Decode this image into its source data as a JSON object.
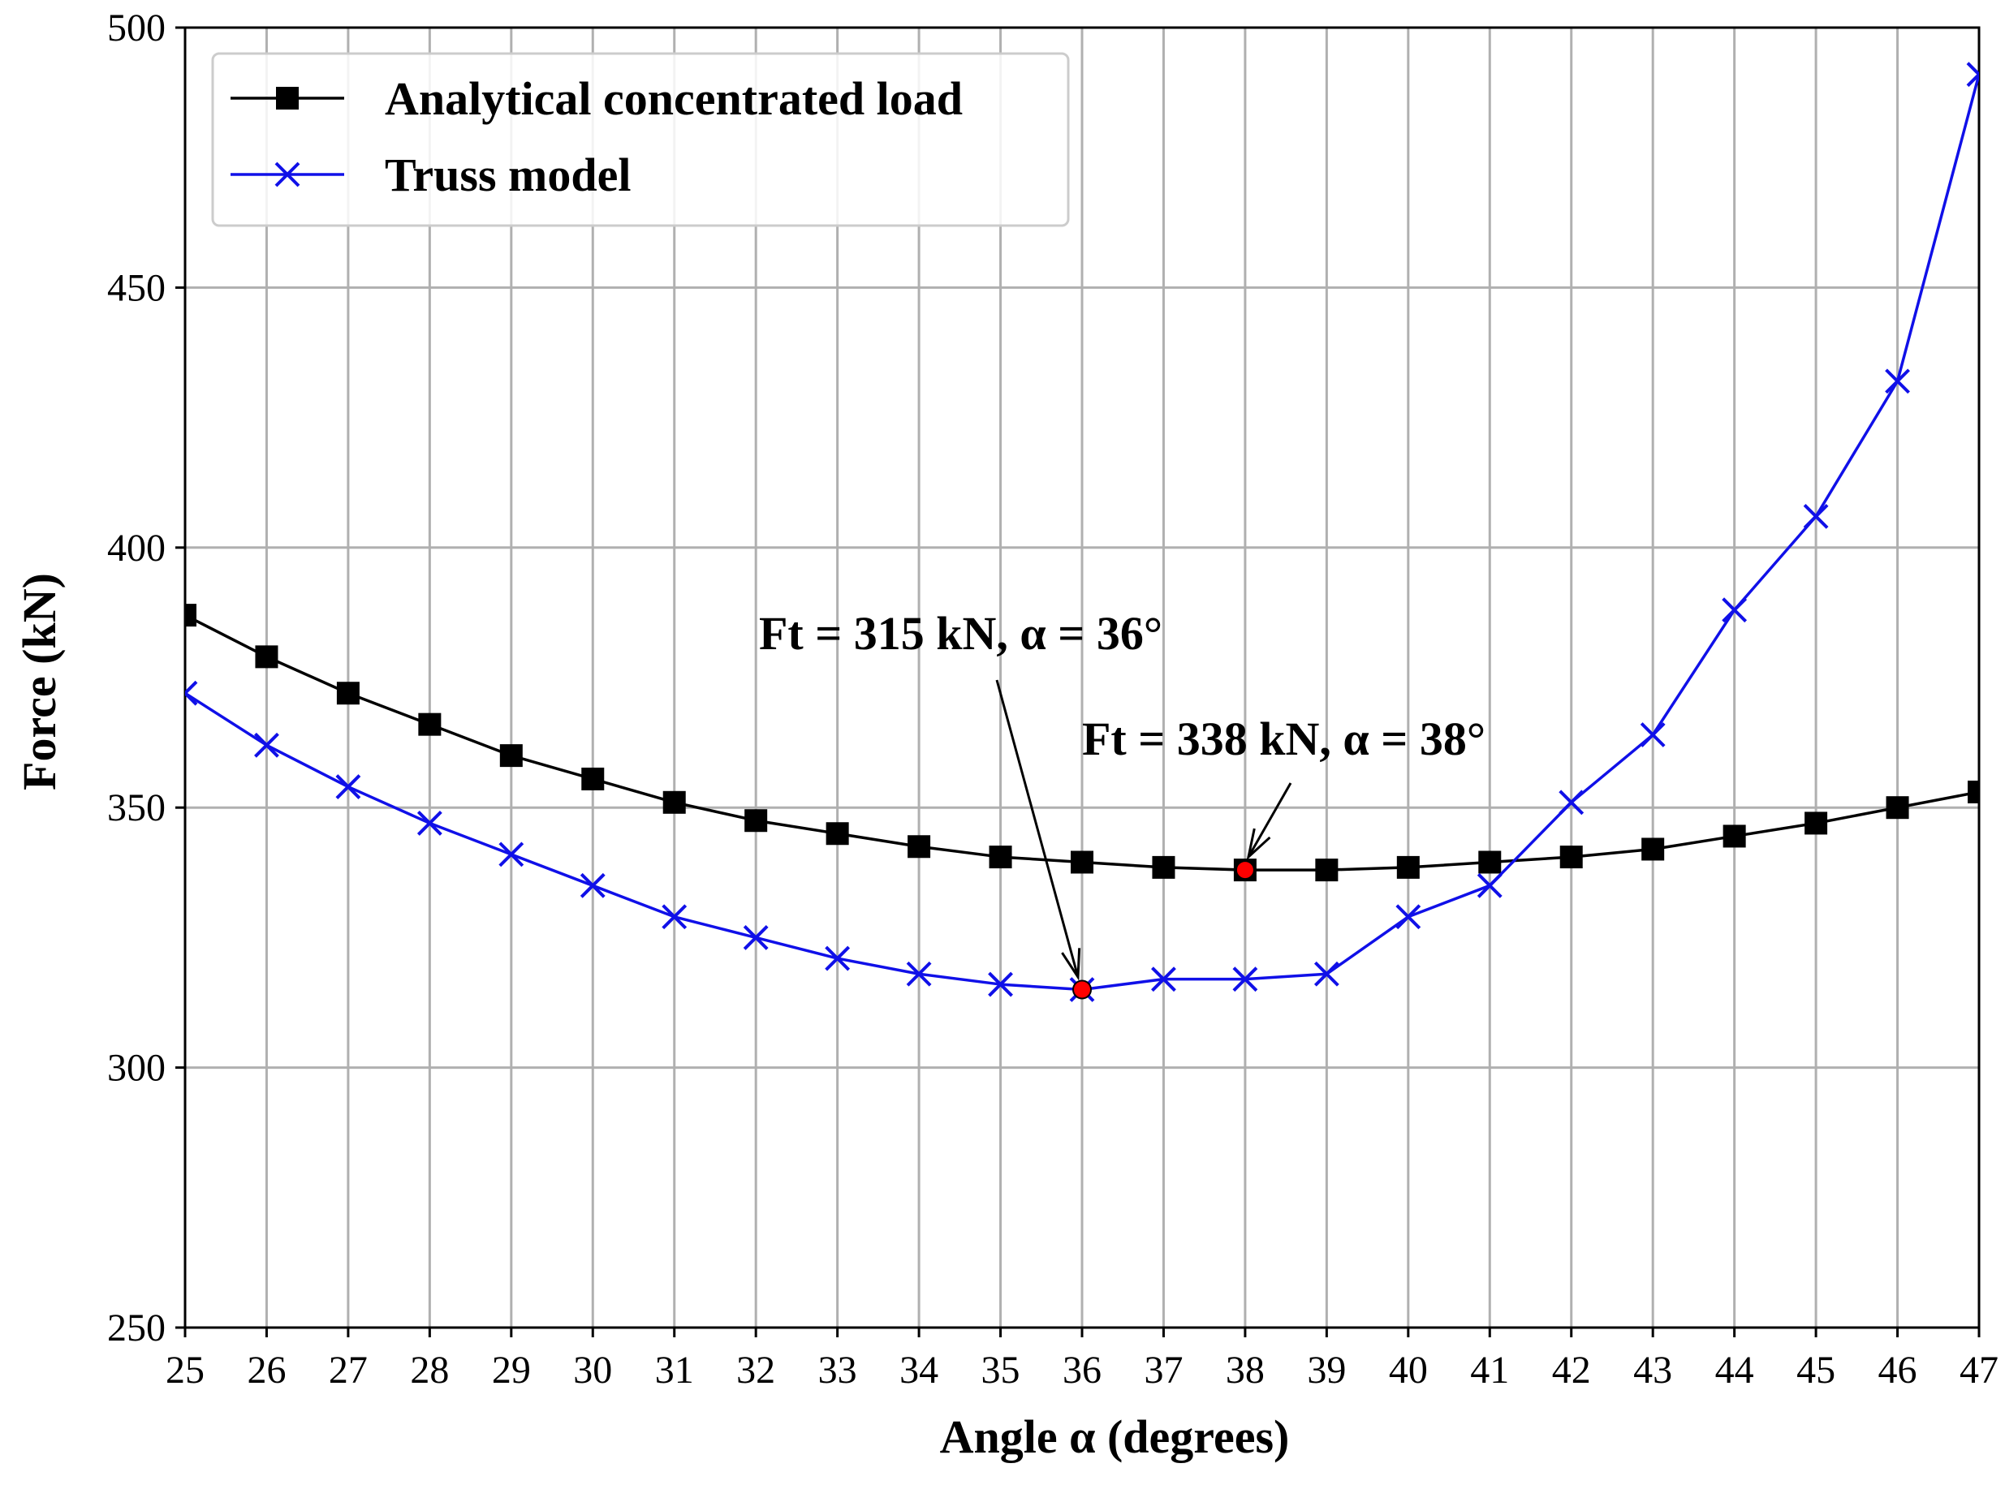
{
  "chart_data": {
    "type": "line",
    "title": "",
    "xlabel": "Angle α (degrees)",
    "ylabel": "Force (kN)",
    "x": [
      25,
      26,
      27,
      28,
      29,
      30,
      31,
      32,
      33,
      34,
      35,
      36,
      37,
      38,
      39,
      40,
      41,
      42,
      43,
      44,
      45,
      46,
      47
    ],
    "xlim": [
      25,
      47
    ],
    "ylim": [
      250,
      500
    ],
    "xticks": [
      "25",
      "26",
      "27",
      "28",
      "29",
      "30",
      "31",
      "32",
      "33",
      "34",
      "35",
      "36",
      "37",
      "38",
      "39",
      "40",
      "41",
      "42",
      "43",
      "44",
      "45",
      "46",
      "47"
    ],
    "yticks": [
      "250",
      "300",
      "350",
      "400",
      "450",
      "500"
    ],
    "grid": true,
    "legend_position": "top-left",
    "series": [
      {
        "name": "Analytical concentrated load",
        "color": "#000000",
        "marker": "square",
        "values": [
          387,
          379,
          372,
          366,
          360,
          355.5,
          351,
          347.5,
          345,
          342.5,
          340.5,
          339.5,
          338.5,
          338,
          338,
          338.5,
          339.5,
          340.5,
          342,
          344.5,
          347,
          350,
          353
        ]
      },
      {
        "name": "Truss model",
        "color": "#1010e8",
        "marker": "x",
        "values": [
          372,
          362,
          354,
          347,
          341,
          335,
          329,
          325,
          321,
          318,
          316,
          315,
          317,
          317,
          318,
          329,
          335,
          351,
          364,
          388,
          406,
          432,
          491
        ]
      }
    ],
    "highlight_points": [
      {
        "series": "Truss model",
        "x": 36,
        "y": 315,
        "color": "#ff0000"
      },
      {
        "series": "Analytical concentrated load",
        "x": 38,
        "y": 338,
        "color": "#ff0000"
      }
    ],
    "annotations": [
      {
        "text": "Ft = 315 kN, α = 36°",
        "target_x": 36,
        "target_y": 315
      },
      {
        "text": "Ft = 338 kN, α = 38°",
        "target_x": 38,
        "target_y": 338
      }
    ]
  }
}
